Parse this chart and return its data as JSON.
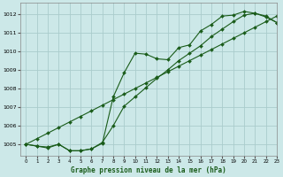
{
  "title": "Graphe pression niveau de la mer (hPa)",
  "bg_color": "#cce8e8",
  "grid_color": "#aacccc",
  "line_color": "#1a5c1a",
  "marker_color": "#1a5c1a",
  "xlim": [
    -0.5,
    23
  ],
  "ylim": [
    1004.4,
    1012.6
  ],
  "yticks": [
    1005,
    1006,
    1007,
    1008,
    1009,
    1010,
    1011,
    1012
  ],
  "xticks": [
    0,
    1,
    2,
    3,
    4,
    5,
    6,
    7,
    8,
    9,
    10,
    11,
    12,
    13,
    14,
    15,
    16,
    17,
    18,
    19,
    20,
    21,
    22,
    23
  ],
  "series_jagged": [
    1005.0,
    1004.9,
    1004.85,
    1005.0,
    1004.65,
    1004.65,
    1004.75,
    1005.05,
    1007.55,
    1008.85,
    1009.9,
    1009.85,
    1009.6,
    1009.55,
    1010.2,
    1010.35,
    1011.1,
    1011.45,
    1011.9,
    1011.95,
    1012.15,
    1012.05,
    1011.85,
    1011.55
  ],
  "series_smooth": [
    1005.0,
    1004.9,
    1004.8,
    1005.0,
    1004.65,
    1004.65,
    1004.75,
    1005.1,
    1006.0,
    1007.05,
    1007.55,
    1008.05,
    1008.55,
    1009.0,
    1009.5,
    1009.9,
    1010.3,
    1010.8,
    1011.2,
    1011.6,
    1011.95,
    1012.05,
    1011.9,
    1011.55
  ],
  "series_linear": [
    1005.0,
    1005.3,
    1005.6,
    1005.9,
    1006.2,
    1006.5,
    1006.8,
    1007.1,
    1007.4,
    1007.7,
    1008.0,
    1008.3,
    1008.6,
    1008.9,
    1009.2,
    1009.5,
    1009.8,
    1010.1,
    1010.4,
    1010.7,
    1011.0,
    1011.3,
    1011.6,
    1011.9
  ]
}
